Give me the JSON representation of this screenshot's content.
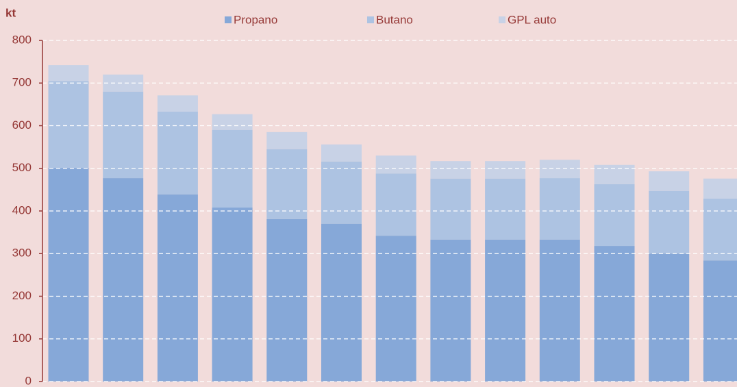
{
  "chart_data": {
    "type": "stacked_bar",
    "y_label": "kt",
    "categories": [
      null,
      null,
      null,
      null,
      null,
      null,
      null,
      null,
      null,
      null,
      null,
      null,
      null
    ],
    "series": [
      {
        "name": "Propano",
        "color": "#86a8d8",
        "values": [
          501,
          477,
          439,
          408,
          381,
          370,
          342,
          333,
          333,
          333,
          318,
          300,
          284
        ]
      },
      {
        "name": "Butano",
        "color": "#adc3e2",
        "values": [
          204,
          203,
          194,
          182,
          164,
          146,
          146,
          143,
          143,
          144,
          145,
          147,
          145
        ]
      },
      {
        "name": "GPL auto",
        "color": "#c8d2e6",
        "values": [
          37,
          40,
          38,
          37,
          40,
          40,
          42,
          41,
          41,
          43,
          45,
          46,
          47
        ]
      }
    ],
    "ylim": [
      0,
      800
    ],
    "yticks": [
      0,
      100,
      200,
      300,
      400,
      500,
      600,
      700,
      800
    ],
    "grid": true,
    "legend": "top"
  }
}
